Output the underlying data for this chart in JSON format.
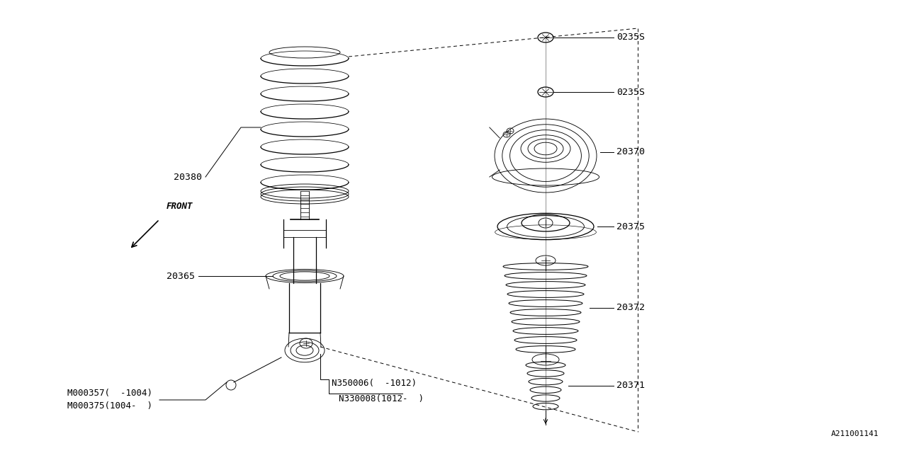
{
  "bg_color": "#ffffff",
  "line_color": "#000000",
  "fig_width": 12.8,
  "fig_height": 6.4,
  "diagram_id": "A211001141",
  "label_0235S_1": "0235S",
  "label_0235S_2": "0235S",
  "label_20370": "20370",
  "label_20375": "20375",
  "label_20372": "20372",
  "label_20371": "20371",
  "label_20380": "20380",
  "label_20365": "20365",
  "label_M1": "M000357(  -1004)",
  "label_M2": "M000375(1004-  )",
  "label_N1": "N350006(  -1012)",
  "label_N2": "N330008(1012-  )",
  "label_front": "FRONT"
}
